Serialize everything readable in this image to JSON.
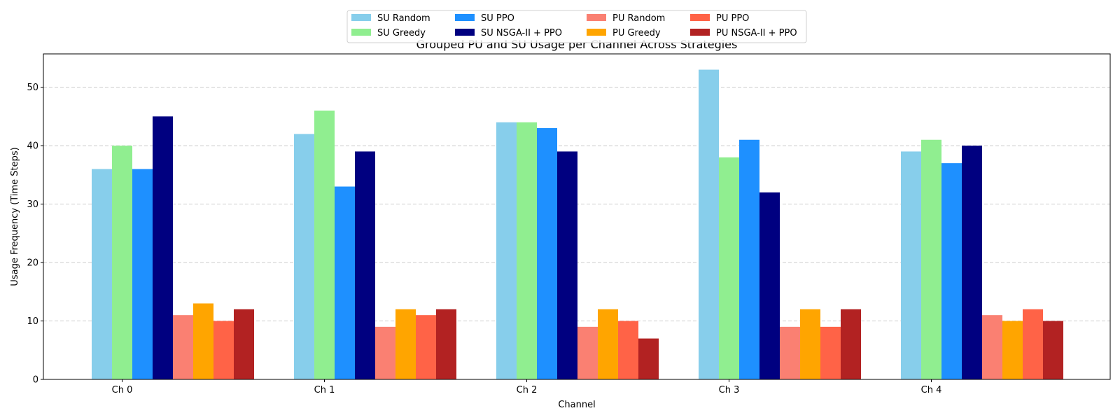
{
  "chart_data": {
    "type": "bar",
    "title": "Grouped PU and SU Usage per Channel Across Strategies",
    "xlabel": "Channel",
    "ylabel": "Usage Frequency (Time Steps)",
    "categories": [
      "Ch 0",
      "Ch 1",
      "Ch 2",
      "Ch 3",
      "Ch 4"
    ],
    "ylim": [
      0,
      55.7
    ],
    "yticks": [
      0,
      10,
      20,
      30,
      40,
      50
    ],
    "grid": "y-dashed",
    "legend_position": "top-center",
    "series": [
      {
        "name": "SU Random",
        "color": "#87CEEB",
        "values": [
          36,
          42,
          44,
          53,
          39
        ]
      },
      {
        "name": "SU Greedy",
        "color": "#90EE90",
        "values": [
          40,
          46,
          44,
          38,
          41
        ]
      },
      {
        "name": "SU PPO",
        "color": "#1E90FF",
        "values": [
          36,
          33,
          43,
          41,
          37
        ]
      },
      {
        "name": "SU NSGA-II + PPO",
        "color": "#000080",
        "values": [
          45,
          39,
          39,
          32,
          40
        ]
      },
      {
        "name": "PU Random",
        "color": "#FA8072",
        "values": [
          11,
          9,
          9,
          9,
          11
        ]
      },
      {
        "name": "PU Greedy",
        "color": "#FFA500",
        "values": [
          13,
          12,
          12,
          12,
          10
        ]
      },
      {
        "name": "PU PPO",
        "color": "#FF6347",
        "values": [
          10,
          11,
          10,
          9,
          12
        ]
      },
      {
        "name": "PU NSGA-II + PPO",
        "color": "#B22222",
        "values": [
          12,
          12,
          7,
          12,
          10
        ]
      }
    ]
  }
}
